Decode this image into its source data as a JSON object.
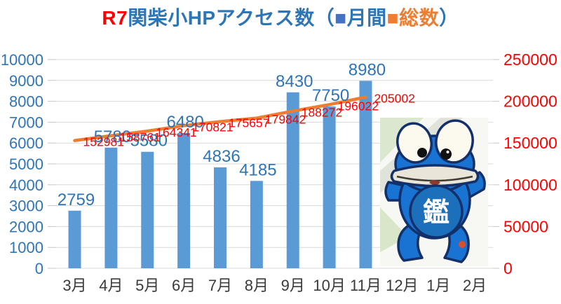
{
  "title": {
    "year_prefix": "R7",
    "main": "関柴小HPアクセス数（",
    "monthly_swatch": "■",
    "monthly_label": "月間",
    "total_swatch": "■",
    "total_label": "総数",
    "closing_paren": "）"
  },
  "chart_data": {
    "type": "bar",
    "subtype": "combo-bar-line-dual-axis",
    "title": "R7関柴小HPアクセス数（月間・総数）",
    "categories": [
      "3月",
      "4月",
      "5月",
      "6月",
      "7月",
      "8月",
      "9月",
      "10月",
      "11月",
      "12月",
      "1月",
      "2月"
    ],
    "series": [
      {
        "name": "月間",
        "type": "bar",
        "axis": "left",
        "color": "#5b9bd5",
        "label_color": "#2e75b6",
        "values": [
          2759,
          5780,
          5580,
          6480,
          4836,
          4185,
          8430,
          7750,
          8980,
          null,
          null,
          null
        ]
      },
      {
        "name": "総数",
        "type": "line",
        "axis": "right",
        "color": "#ed7d31",
        "label_color": "#ff0000",
        "values": [
          152981,
          158761,
          164341,
          170821,
          175657,
          179842,
          188272,
          196022,
          205002,
          null,
          null,
          null
        ]
      }
    ],
    "left_axis": {
      "min": 0,
      "max": 10000,
      "step": 1000,
      "color": "#2e75b6"
    },
    "right_axis": {
      "min": 0,
      "max": 250000,
      "step": 50000,
      "color": "#ff0000"
    },
    "x_label_color": "#3a3a3a",
    "grid": true,
    "gridline_color": "#d9d9d9",
    "legend_position": "inside-title"
  },
  "mascot": {
    "belly_char": "鑑"
  }
}
